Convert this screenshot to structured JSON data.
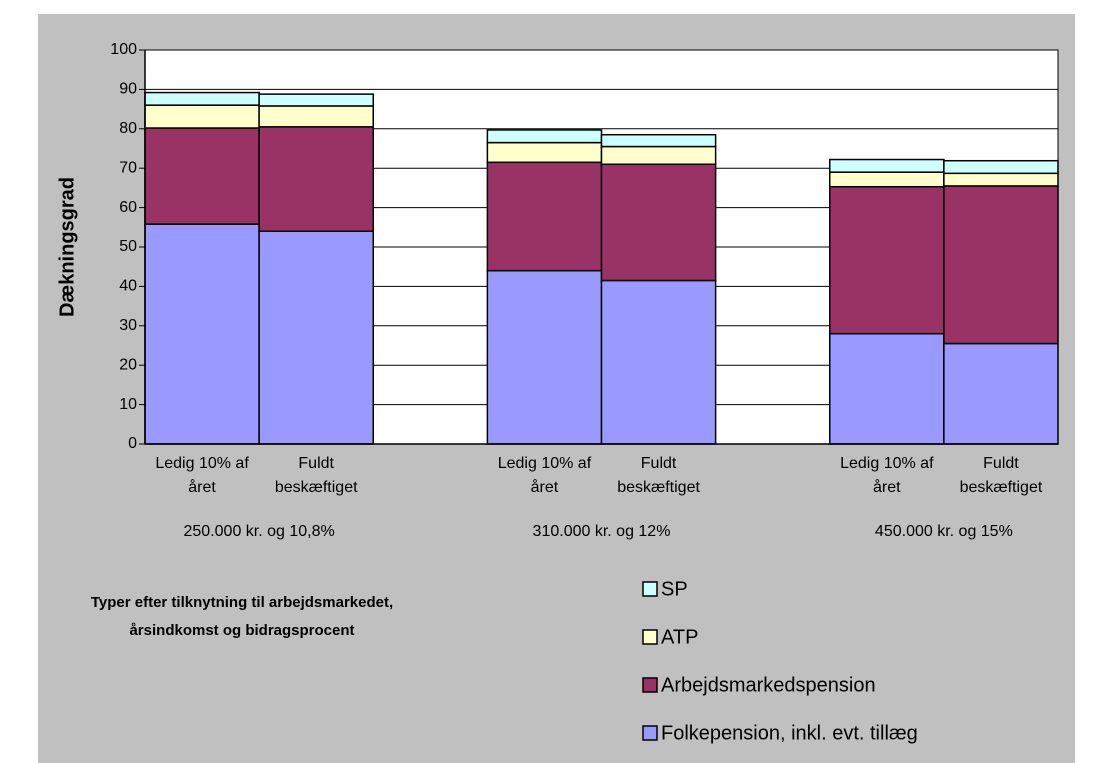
{
  "chart_data": {
    "type": "stacked_bar",
    "y_label": "Dækningsgrad",
    "x_label": "Typer efter tilknytning til arbejdsmarkedet, årsindkomst og bidragsprocent",
    "groups": [
      "250.000 kr. og 10,8%",
      "310.000 kr. og 12%",
      "450.000 kr. og 15%"
    ],
    "categories": [
      "Ledig 10% af året",
      "Fuldt beskæftiget",
      "Ledig 10% af året",
      "Fuldt beskæftiget",
      "Ledig 10% af året",
      "Fuldt beskæftiget"
    ],
    "series": [
      {
        "name": "Folkepension, inkl. evt. tillæg",
        "color": "#9999ff",
        "values": [
          55.8,
          54,
          44,
          41.5,
          28,
          25.5
        ]
      },
      {
        "name": "Arbejdsmarkedspension",
        "color": "#993366",
        "values": [
          24.4,
          26.5,
          27.5,
          29.5,
          37.3,
          40
        ]
      },
      {
        "name": "ATP",
        "color": "#ffffcc",
        "values": [
          5.8,
          5.3,
          5,
          4.5,
          3.7,
          3.2
        ]
      },
      {
        "name": "SP",
        "color": "#ccffff",
        "values": [
          3.2,
          3,
          3.2,
          3,
          3.2,
          3.2
        ]
      }
    ],
    "ylim": [
      0,
      100
    ],
    "yticks": [
      0,
      10,
      20,
      30,
      40,
      50,
      60,
      70,
      80,
      90,
      100
    ],
    "grid": true
  }
}
